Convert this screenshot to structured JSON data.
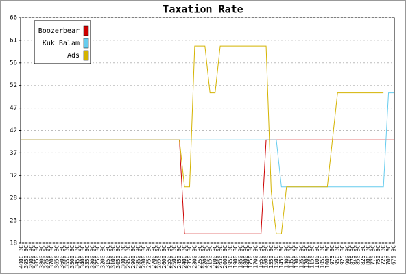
{
  "chart_data": {
    "type": "line",
    "title": "Taxation Rate",
    "categories": [
      "4000 BC",
      "3950 BC",
      "3900 BC",
      "3850 BC",
      "3800 BC",
      "3750 BC",
      "3700 BC",
      "3650 BC",
      "3600 BC",
      "3550 BC",
      "3500 BC",
      "3450 BC",
      "3400 BC",
      "3350 BC",
      "3300 BC",
      "3250 BC",
      "3200 BC",
      "3150 BC",
      "3100 BC",
      "3050 BC",
      "3000 BC",
      "2950 BC",
      "2900 BC",
      "2850 BC",
      "2800 BC",
      "2750 BC",
      "2700 BC",
      "2650 BC",
      "2600 BC",
      "2550 BC",
      "2500 BC",
      "2450 BC",
      "2400 BC",
      "2350 BC",
      "2300 BC",
      "2250 BC",
      "2200 BC",
      "2150 BC",
      "2100 BC",
      "2050 BC",
      "2000 BC",
      "1950 BC",
      "1900 BC",
      "1850 BC",
      "1800 BC",
      "1750 BC",
      "1700 BC",
      "1650 BC",
      "1600 BC",
      "1550 BC",
      "1500 BC",
      "1450 BC",
      "1400 BC",
      "1350 BC",
      "1300 BC",
      "1250 BC",
      "1200 BC",
      "1150 BC",
      "1100 BC",
      "1050 BC",
      "1000 BC",
      "975 BC",
      "950 BC",
      "925 BC",
      "900 BC",
      "875 BC",
      "850 BC",
      "825 BC",
      "800 BC",
      "775 BC",
      "750 BC",
      "725 BC",
      "700 BC",
      "675 BC"
    ],
    "series": [
      {
        "name": "Boozerbear",
        "color": "#cc0000",
        "values": [
          40,
          40,
          40,
          40,
          40,
          40,
          40,
          40,
          40,
          40,
          40,
          40,
          40,
          40,
          40,
          40,
          40,
          40,
          40,
          40,
          40,
          40,
          40,
          40,
          40,
          40,
          40,
          40,
          40,
          40,
          40,
          40,
          20,
          20,
          20,
          20,
          20,
          20,
          20,
          20,
          20,
          20,
          20,
          20,
          20,
          20,
          20,
          20,
          40,
          40,
          40,
          40,
          40,
          40,
          40,
          40,
          40,
          40,
          40,
          40,
          40,
          40,
          40,
          40,
          40,
          40,
          40,
          40,
          40,
          40,
          40,
          40,
          40,
          40
        ]
      },
      {
        "name": "Kuk Balam",
        "color": "#66ccee",
        "values": [
          40,
          40,
          40,
          40,
          40,
          40,
          40,
          40,
          40,
          40,
          40,
          40,
          40,
          40,
          40,
          40,
          40,
          40,
          40,
          40,
          40,
          40,
          40,
          40,
          40,
          40,
          40,
          40,
          40,
          40,
          40,
          40,
          40,
          40,
          40,
          40,
          40,
          40,
          40,
          40,
          40,
          40,
          40,
          40,
          40,
          40,
          40,
          40,
          40,
          40,
          40,
          30,
          30,
          30,
          30,
          30,
          30,
          30,
          30,
          30,
          30,
          30,
          30,
          30,
          30,
          30,
          30,
          30,
          30,
          30,
          30,
          30,
          50,
          50
        ]
      },
      {
        "name": "Ads",
        "color": "#d4b300",
        "values": [
          40,
          40,
          40,
          40,
          40,
          40,
          40,
          40,
          40,
          40,
          40,
          40,
          40,
          40,
          40,
          40,
          40,
          40,
          40,
          40,
          40,
          40,
          40,
          40,
          40,
          40,
          40,
          40,
          40,
          40,
          40,
          40,
          30,
          30,
          60,
          60,
          60,
          50,
          50,
          60,
          60,
          60,
          60,
          60,
          60,
          60,
          60,
          60,
          60,
          29,
          20,
          20,
          30,
          30,
          30,
          30,
          30,
          30,
          30,
          30,
          30,
          40,
          50,
          50,
          50,
          50,
          50,
          50,
          50,
          50,
          50,
          50,
          null,
          null
        ]
      }
    ],
    "ylim": [
      18,
      66
    ],
    "yticks": [
      18,
      {
        "value": 22.8,
        "label": "23"
      },
      {
        "value": 27.6,
        "label": "28"
      },
      {
        "value": 32.4,
        "label": "32"
      },
      {
        "value": 37.2,
        "label": "37"
      },
      42,
      {
        "value": 46.8,
        "label": "47"
      },
      {
        "value": 51.6,
        "label": "52"
      },
      {
        "value": 56.4,
        "label": "56"
      },
      {
        "value": 61.2,
        "label": "61"
      },
      66
    ],
    "grid": true,
    "legend": "top-left"
  }
}
